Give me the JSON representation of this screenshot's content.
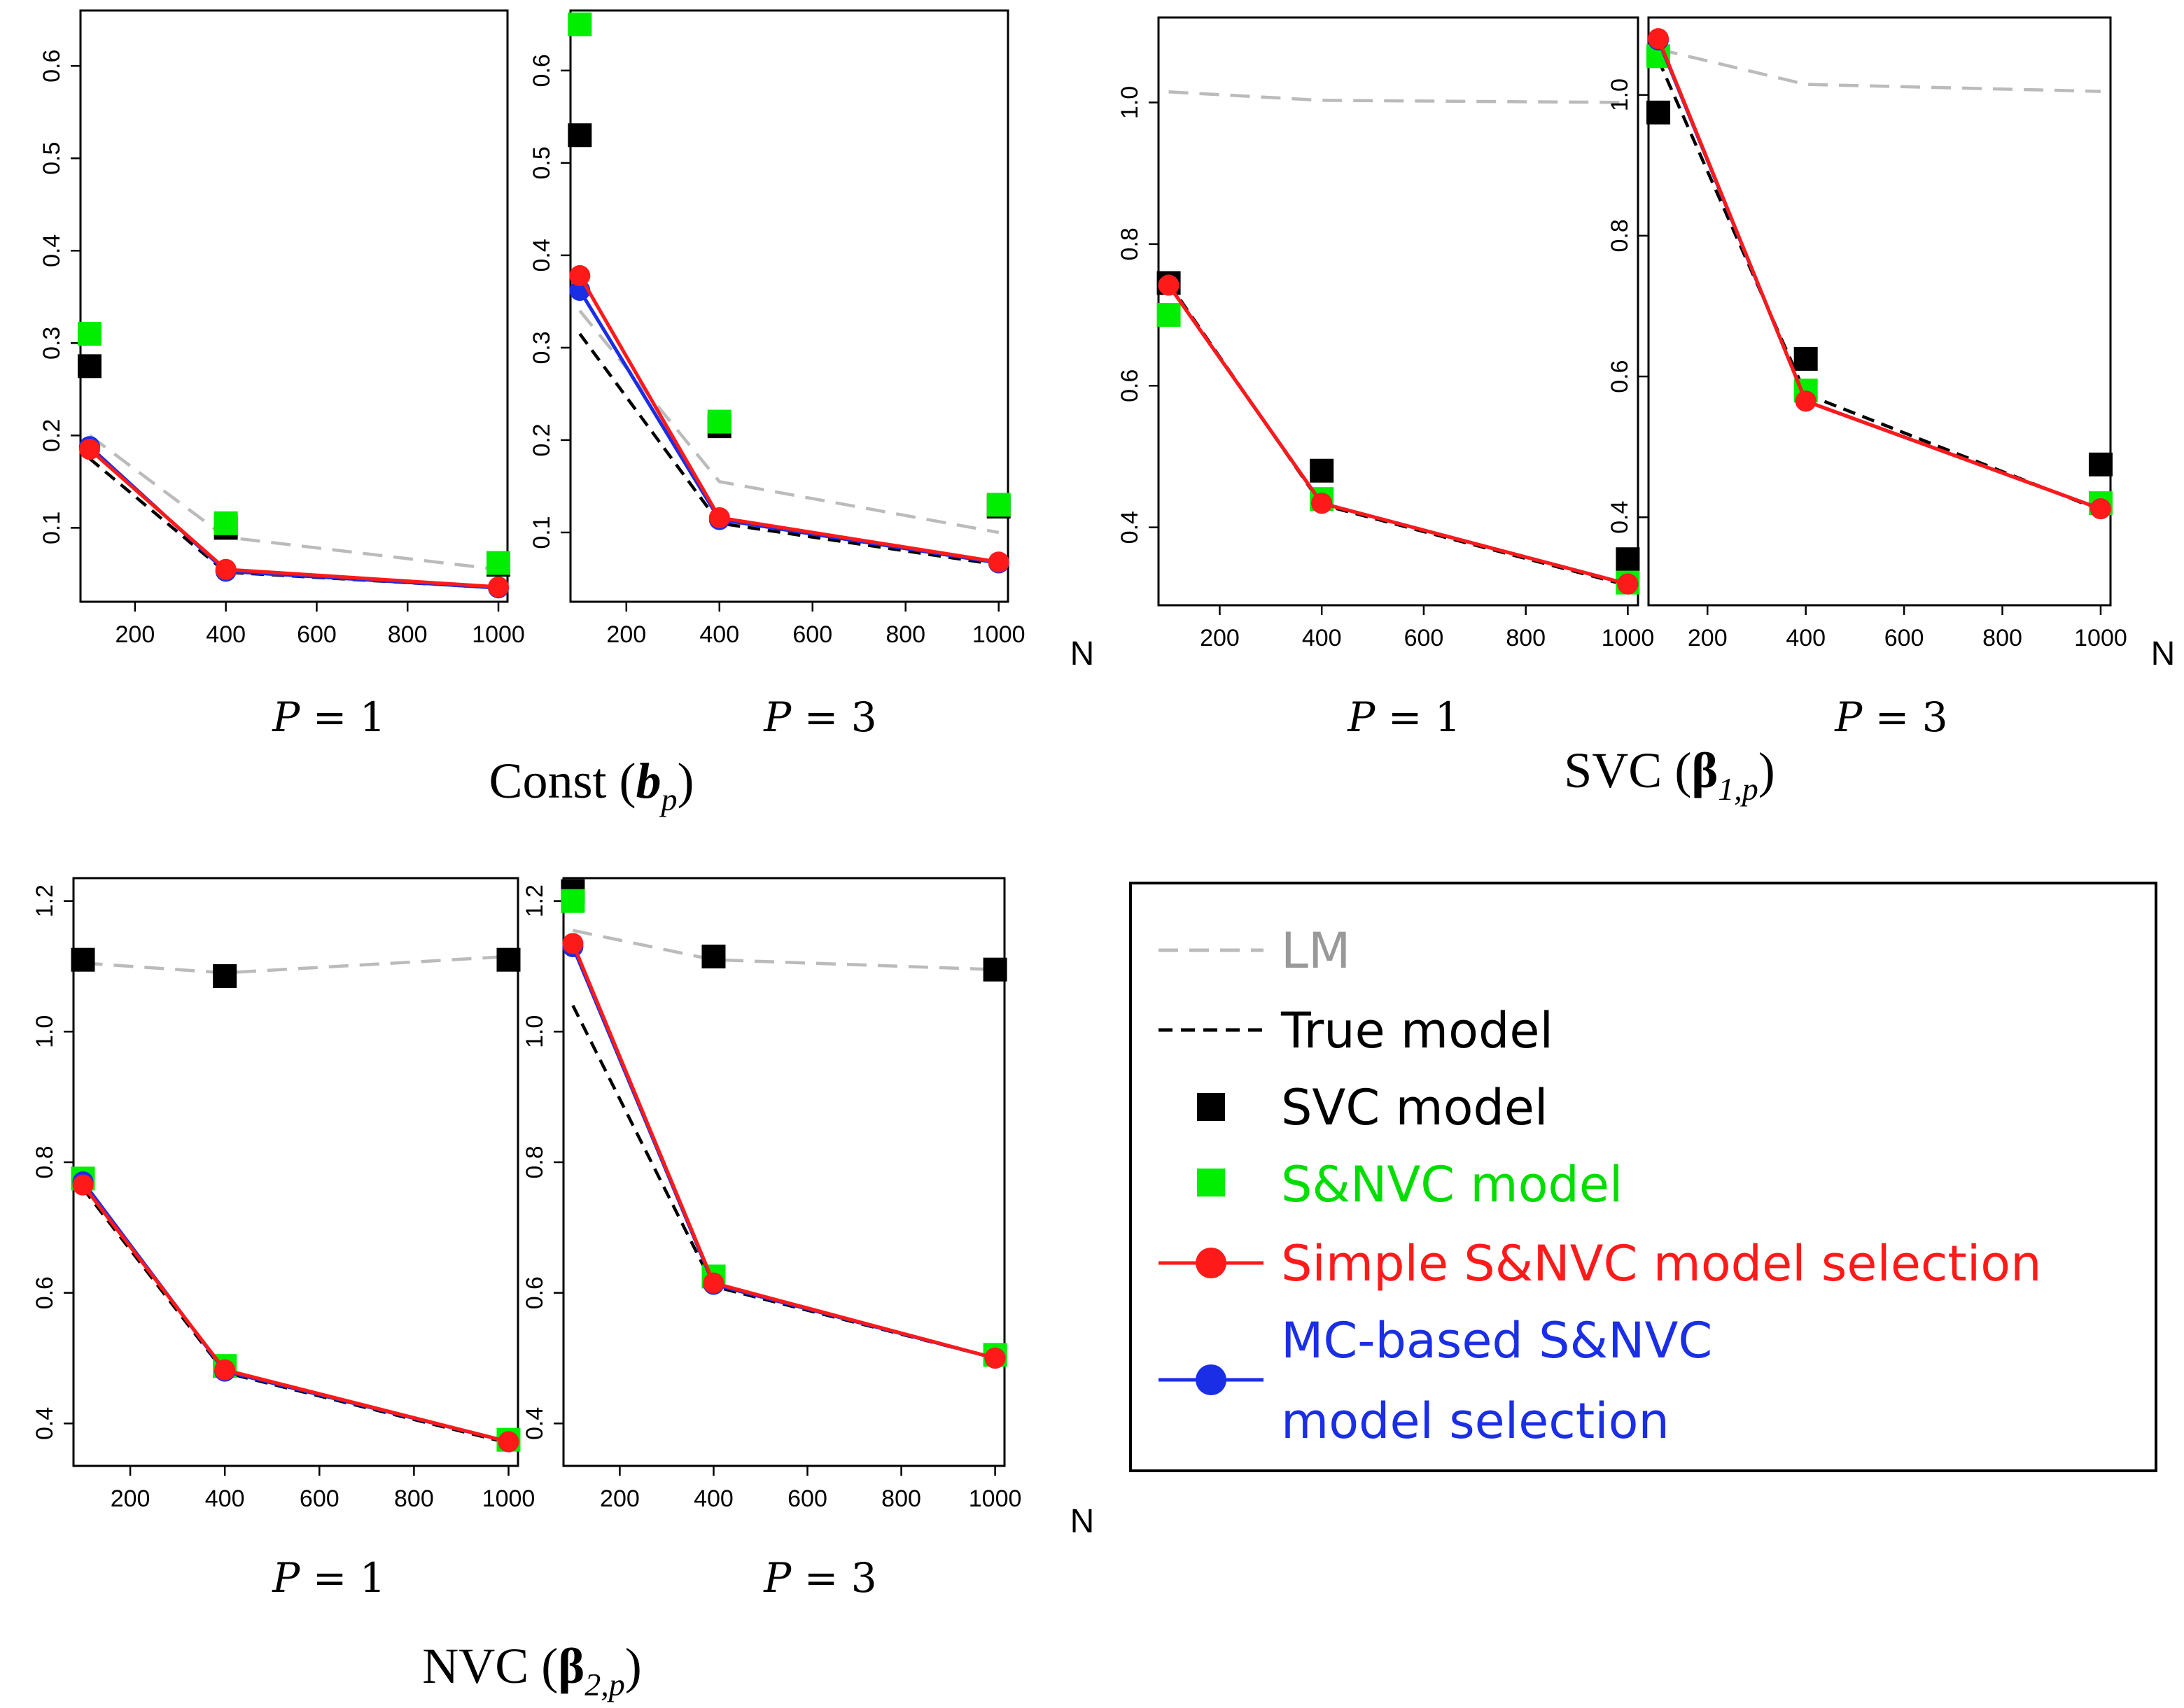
{
  "colors": {
    "lm": "#bbbbbb",
    "true_model": "#000000",
    "svc_model": "#000000",
    "snvc_model": "#00ee00",
    "simple_selection": "#ff1a1a",
    "mc_selection": "#1a2ee6"
  },
  "group_titles": {
    "const": {
      "main": "Const (",
      "sym": "b",
      "sub": "p",
      "close": ")"
    },
    "svc": {
      "main": "SVC (",
      "sym": "β",
      "sub": "1,p",
      "close": ")"
    },
    "nvc": {
      "main": "NVC (",
      "sym": "β",
      "sub": "2,p",
      "close": ")"
    }
  },
  "n_label": "N",
  "p_labels": {
    "p1": {
      "sym": "P",
      "rest": " = 1"
    },
    "p3": {
      "sym": "P",
      "rest": " = 3"
    }
  },
  "legend": {
    "lm": "LM",
    "true_model": "True model",
    "svc_model": "SVC model",
    "snvc_model": "S&NVC model",
    "simple_selection": "Simple S&NVC model selection",
    "mc_selection_line1": "MC-based S&NVC",
    "mc_selection_line2": "model selection"
  },
  "chart_data": [
    {
      "type": "line",
      "group": "Const",
      "panel": "P = 1",
      "x": [
        100,
        400,
        1000
      ],
      "xticks": [
        200,
        400,
        600,
        800,
        1000
      ],
      "xlim": [
        80,
        1020
      ],
      "ylim": [
        0.02,
        0.66
      ],
      "yticks": [
        0.1,
        0.2,
        0.3,
        0.4,
        0.5,
        0.6
      ],
      "series": [
        {
          "name": "LM",
          "values": [
            0.2,
            0.09,
            0.055
          ]
        },
        {
          "name": "True model",
          "values": [
            0.175,
            0.052,
            0.035
          ]
        },
        {
          "name": "SVC model",
          "values": [
            0.275,
            0.1,
            0.06
          ]
        },
        {
          "name": "S&NVC model",
          "values": [
            0.31,
            0.105,
            0.062
          ]
        },
        {
          "name": "Simple S&NVC model selection",
          "values": [
            0.185,
            0.055,
            0.036
          ]
        },
        {
          "name": "MC-based S&NVC model selection",
          "values": [
            0.188,
            0.053,
            0.035
          ]
        }
      ]
    },
    {
      "type": "line",
      "group": "Const",
      "panel": "P = 3",
      "x": [
        100,
        400,
        1000
      ],
      "xticks": [
        200,
        400,
        600,
        800,
        1000
      ],
      "xlim": [
        80,
        1020
      ],
      "ylim": [
        0.025,
        0.665
      ],
      "yticks": [
        0.1,
        0.2,
        0.3,
        0.4,
        0.5,
        0.6
      ],
      "series": [
        {
          "name": "LM",
          "values": [
            0.34,
            0.155,
            0.1
          ]
        },
        {
          "name": "True model",
          "values": [
            0.315,
            0.11,
            0.065
          ]
        },
        {
          "name": "SVC model",
          "values": [
            0.53,
            0.215,
            0.128
          ]
        },
        {
          "name": "S&NVC model",
          "values": [
            0.65,
            0.22,
            0.13
          ]
        },
        {
          "name": "Simple S&NVC model selection",
          "values": [
            0.378,
            0.116,
            0.068
          ]
        },
        {
          "name": "MC-based S&NVC model selection",
          "values": [
            0.362,
            0.114,
            0.067
          ]
        }
      ]
    },
    {
      "type": "line",
      "group": "SVC",
      "panel": "P = 1",
      "x": [
        100,
        400,
        1000
      ],
      "xticks": [
        200,
        400,
        600,
        800,
        1000
      ],
      "xlim": [
        80,
        1020
      ],
      "ylim": [
        0.29,
        1.12
      ],
      "yticks": [
        0.4,
        0.6,
        0.8,
        1.0
      ],
      "series": [
        {
          "name": "LM",
          "values": [
            1.015,
            1.003,
            1.0
          ]
        },
        {
          "name": "True model",
          "values": [
            0.745,
            0.432,
            0.318
          ]
        },
        {
          "name": "SVC model",
          "values": [
            0.745,
            0.48,
            0.355
          ]
        },
        {
          "name": "S&NVC model",
          "values": [
            0.7,
            0.44,
            0.322
          ]
        },
        {
          "name": "Simple S&NVC model selection",
          "values": [
            0.742,
            0.434,
            0.32
          ]
        },
        {
          "name": "MC-based S&NVC model selection",
          "values": [
            0.742,
            0.434,
            0.32
          ]
        }
      ]
    },
    {
      "type": "line",
      "group": "SVC",
      "panel": "P = 3",
      "x": [
        100,
        400,
        1000
      ],
      "xticks": [
        200,
        400,
        600,
        800,
        1000
      ],
      "xlim": [
        80,
        1020
      ],
      "ylim": [
        0.275,
        1.11
      ],
      "yticks": [
        0.4,
        0.6,
        0.8,
        1.0
      ],
      "series": [
        {
          "name": "LM",
          "values": [
            1.065,
            1.015,
            1.005
          ]
        },
        {
          "name": "True model",
          "values": [
            1.05,
            0.575,
            0.41
          ]
        },
        {
          "name": "SVC model",
          "values": [
            0.975,
            0.625,
            0.475
          ]
        },
        {
          "name": "S&NVC model",
          "values": [
            1.055,
            0.58,
            0.42
          ]
        },
        {
          "name": "Simple S&NVC model selection",
          "values": [
            1.08,
            0.565,
            0.412
          ]
        },
        {
          "name": "MC-based S&NVC model selection",
          "values": [
            1.078,
            0.565,
            0.412
          ]
        }
      ]
    },
    {
      "type": "line",
      "group": "NVC",
      "panel": "P = 1",
      "x": [
        100,
        400,
        1000
      ],
      "xticks": [
        200,
        400,
        600,
        800,
        1000
      ],
      "xlim": [
        80,
        1020
      ],
      "ylim": [
        0.335,
        1.235
      ],
      "yticks": [
        0.4,
        0.6,
        0.8,
        1.0,
        1.2
      ],
      "series": [
        {
          "name": "LM",
          "values": [
            1.105,
            1.09,
            1.115
          ]
        },
        {
          "name": "True model",
          "values": [
            0.76,
            0.478,
            0.37
          ]
        },
        {
          "name": "SVC model",
          "values": [
            1.11,
            1.085,
            1.11
          ]
        },
        {
          "name": "S&NVC model",
          "values": [
            0.775,
            0.488,
            0.375
          ]
        },
        {
          "name": "Simple S&NVC model selection",
          "values": [
            0.765,
            0.482,
            0.372
          ]
        },
        {
          "name": "MC-based S&NVC model selection",
          "values": [
            0.77,
            0.48,
            0.372
          ]
        }
      ]
    },
    {
      "type": "line",
      "group": "NVC",
      "panel": "P = 3",
      "x": [
        100,
        400,
        1000
      ],
      "xticks": [
        200,
        400,
        600,
        800,
        1000
      ],
      "xlim": [
        80,
        1020
      ],
      "ylim": [
        0.335,
        1.235
      ],
      "yticks": [
        0.4,
        0.6,
        0.8,
        1.0,
        1.2
      ],
      "series": [
        {
          "name": "LM",
          "values": [
            1.155,
            1.11,
            1.095
          ]
        },
        {
          "name": "True model",
          "values": [
            1.04,
            0.61,
            0.5
          ]
        },
        {
          "name": "SVC model",
          "values": [
            1.215,
            1.115,
            1.095
          ]
        },
        {
          "name": "S&NVC model",
          "values": [
            1.2,
            0.625,
            0.505
          ]
        },
        {
          "name": "Simple S&NVC model selection",
          "values": [
            1.135,
            0.615,
            0.5
          ]
        },
        {
          "name": "MC-based S&NVC model selection",
          "values": [
            1.13,
            0.613,
            0.5
          ]
        }
      ]
    }
  ]
}
